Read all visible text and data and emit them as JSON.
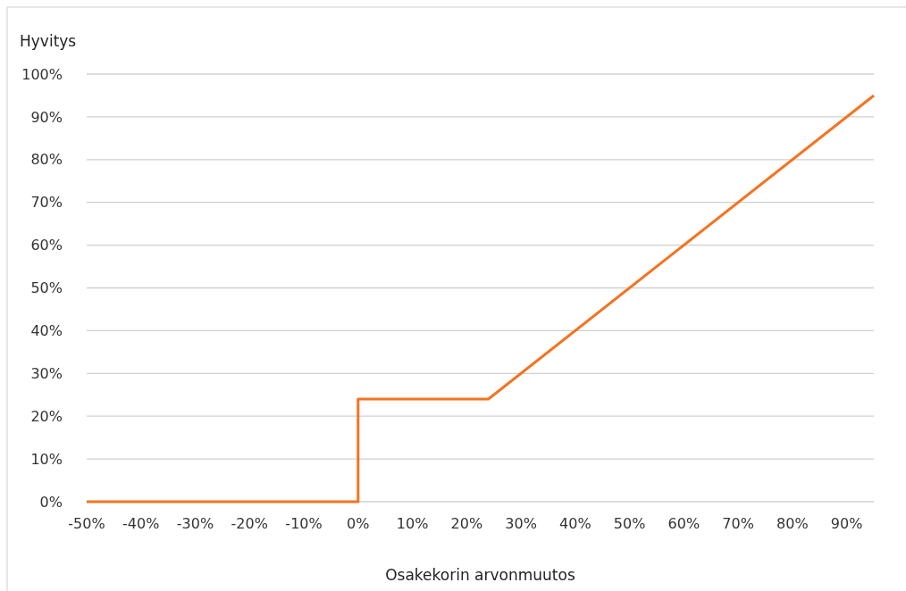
{
  "chart_data": {
    "type": "line",
    "ylabel": "Hyvitys",
    "xlabel": "Osakekorin arvonmuutos",
    "x": [
      -50,
      0,
      0,
      24,
      95
    ],
    "series": [
      {
        "color": "#f47321",
        "values": [
          0,
          0,
          24,
          24,
          95
        ]
      }
    ],
    "xlim": [
      -50,
      95
    ],
    "xticks": [
      {
        "value": -50,
        "label": "-50%"
      },
      {
        "value": -40,
        "label": "-40%"
      },
      {
        "value": -30,
        "label": "-30%"
      },
      {
        "value": -20,
        "label": "-20%"
      },
      {
        "value": -10,
        "label": "-10%"
      },
      {
        "value": 0,
        "label": "0%"
      },
      {
        "value": 10,
        "label": "10%"
      },
      {
        "value": 20,
        "label": "20%"
      },
      {
        "value": 30,
        "label": "30%"
      },
      {
        "value": 40,
        "label": "40%"
      },
      {
        "value": 50,
        "label": "50%"
      },
      {
        "value": 60,
        "label": "60%"
      },
      {
        "value": 70,
        "label": "70%"
      },
      {
        "value": 80,
        "label": "80%"
      },
      {
        "value": 90,
        "label": "90%"
      }
    ],
    "ylim": [
      0,
      100
    ],
    "yticks": [
      {
        "value": 0,
        "label": "0%"
      },
      {
        "value": 10,
        "label": "10%"
      },
      {
        "value": 20,
        "label": "20%"
      },
      {
        "value": 30,
        "label": "30%"
      },
      {
        "value": 40,
        "label": "40%"
      },
      {
        "value": 50,
        "label": "50%"
      },
      {
        "value": 60,
        "label": "60%"
      },
      {
        "value": 70,
        "label": "70%"
      },
      {
        "value": 80,
        "label": "80%"
      },
      {
        "value": 90,
        "label": "90%"
      },
      {
        "value": 100,
        "label": "100%"
      }
    ],
    "grid": "y",
    "marker": "none",
    "line_style": "solid"
  }
}
